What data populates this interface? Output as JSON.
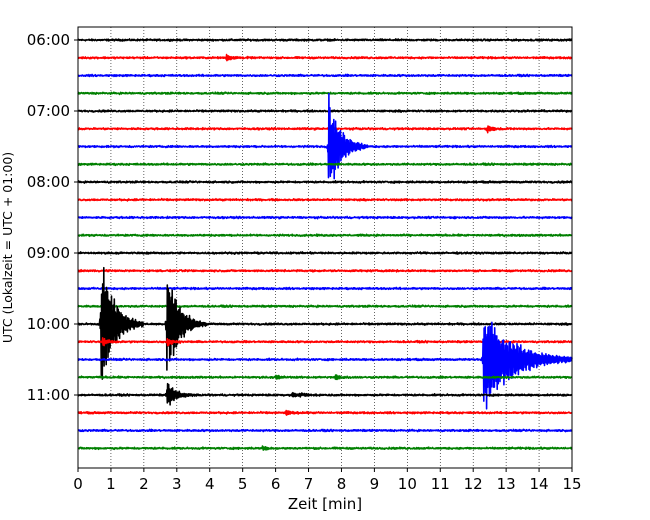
{
  "chart_data": {
    "type": "line",
    "title": "",
    "xlabel": "Zeit  [min]",
    "ylabel": "UTC (Lokalzeit = UTC + 01:00)",
    "xlim": [
      0,
      15
    ],
    "x_ticks": [
      0,
      1,
      2,
      3,
      4,
      5,
      6,
      7,
      8,
      9,
      10,
      11,
      12,
      13,
      14,
      15
    ],
    "x_tick_labels": [
      "0",
      "1",
      "2",
      "3",
      "4",
      "5",
      "6",
      "7",
      "8",
      "9",
      "10",
      "11",
      "12",
      "13",
      "14",
      "15"
    ],
    "ylim_hours": [
      6.0,
      12.0
    ],
    "y_tick_labels": [
      {
        "label": "06:00",
        "hour": 6.0
      },
      {
        "label": "07:00",
        "hour": 7.0
      },
      {
        "label": "08:00",
        "hour": 8.0
      },
      {
        "label": "09:00",
        "hour": 9.0
      },
      {
        "label": "10:00",
        "hour": 10.0
      },
      {
        "label": "11:00",
        "hour": 11.0
      }
    ],
    "grid": {
      "x": true,
      "y": false,
      "style": "dotted"
    },
    "trace_colors": [
      "#000000",
      "#ff0000",
      "#0000ff",
      "#008000"
    ],
    "trace_minutes": 15,
    "trace_count": 24,
    "traces": [
      {
        "hour": 6.0,
        "color": "#000000",
        "events": []
      },
      {
        "hour": 6.25,
        "color": "#ff0000",
        "events": [
          {
            "t_min": 4.5,
            "amp": 0.5,
            "duration_min": 0.7
          }
        ]
      },
      {
        "hour": 6.5,
        "color": "#0000ff",
        "events": []
      },
      {
        "hour": 6.75,
        "color": "#008000",
        "events": []
      },
      {
        "hour": 7.0,
        "color": "#000000",
        "events": []
      },
      {
        "hour": 7.25,
        "color": "#ff0000",
        "events": [
          {
            "t_min": 12.4,
            "amp": 0.45,
            "duration_min": 0.8
          }
        ]
      },
      {
        "hour": 7.5,
        "color": "#0000ff",
        "events": [
          {
            "t_min": 7.6,
            "amp": 6.5,
            "duration_min": 1.2
          }
        ]
      },
      {
        "hour": 7.75,
        "color": "#008000",
        "events": []
      },
      {
        "hour": 8.0,
        "color": "#000000",
        "events": []
      },
      {
        "hour": 8.25,
        "color": "#ff0000",
        "events": []
      },
      {
        "hour": 8.5,
        "color": "#0000ff",
        "events": []
      },
      {
        "hour": 8.75,
        "color": "#008000",
        "events": []
      },
      {
        "hour": 9.0,
        "color": "#000000",
        "events": []
      },
      {
        "hour": 9.25,
        "color": "#ff0000",
        "events": []
      },
      {
        "hour": 9.5,
        "color": "#0000ff",
        "events": []
      },
      {
        "hour": 9.75,
        "color": "#008000",
        "events": []
      },
      {
        "hour": 10.0,
        "color": "#000000",
        "events": [
          {
            "t_min": 0.7,
            "amp": 9.0,
            "duration_min": 1.3
          },
          {
            "t_min": 2.7,
            "amp": 7.0,
            "duration_min": 1.2
          }
        ]
      },
      {
        "hour": 10.25,
        "color": "#ff0000",
        "events": [
          {
            "t_min": 0.75,
            "amp": 0.5,
            "duration_min": 0.6
          },
          {
            "t_min": 2.7,
            "amp": 0.5,
            "duration_min": 0.6
          }
        ]
      },
      {
        "hour": 10.5,
        "color": "#0000ff",
        "events": [
          {
            "t_min": 12.3,
            "amp": 6.5,
            "duration_min": 3.0
          }
        ]
      },
      {
        "hour": 10.75,
        "color": "#008000",
        "events": [
          {
            "t_min": 6.0,
            "amp": 0.35,
            "duration_min": 0.5
          },
          {
            "t_min": 7.8,
            "amp": 0.4,
            "duration_min": 0.6
          }
        ]
      },
      {
        "hour": 11.0,
        "color": "#000000",
        "events": [
          {
            "t_min": 2.7,
            "amp": 1.6,
            "duration_min": 1.0
          },
          {
            "t_min": 6.5,
            "amp": 0.3,
            "duration_min": 1.5
          }
        ]
      },
      {
        "hour": 11.25,
        "color": "#ff0000",
        "events": [
          {
            "t_min": 6.3,
            "amp": 0.35,
            "duration_min": 0.6
          }
        ]
      },
      {
        "hour": 11.5,
        "color": "#0000ff",
        "events": []
      },
      {
        "hour": 11.75,
        "color": "#008000",
        "events": [
          {
            "t_min": 5.6,
            "amp": 0.3,
            "duration_min": 0.6
          }
        ]
      }
    ]
  }
}
